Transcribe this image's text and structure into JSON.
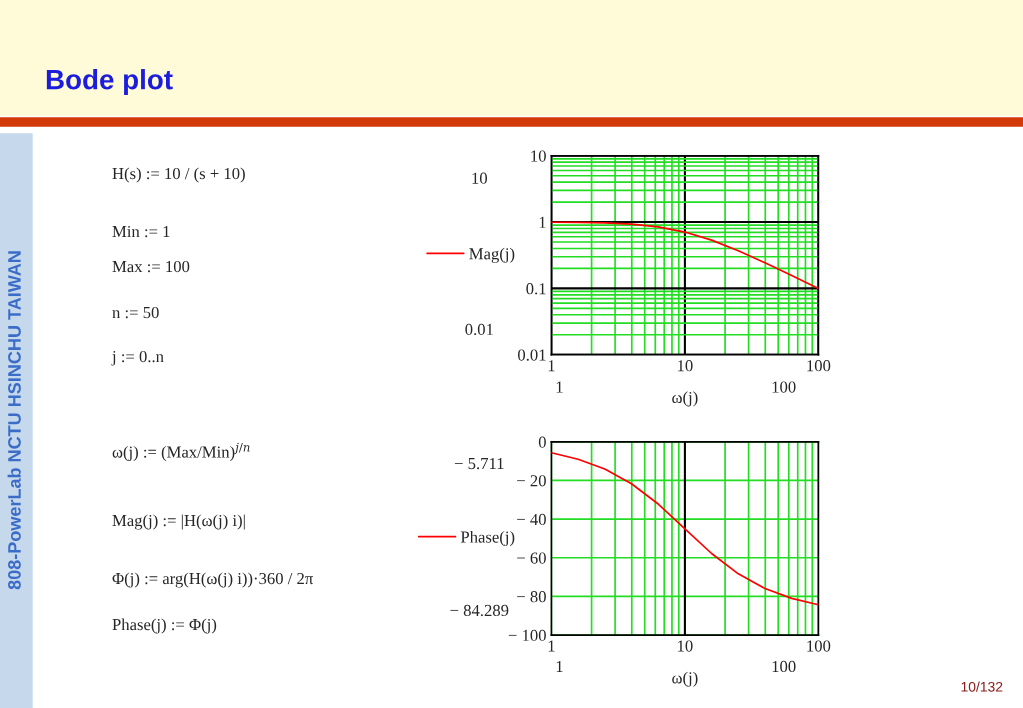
{
  "chart_data": [
    {
      "type": "other",
      "title": "Bode plot",
      "annotations": [
        "H(s) := 10 / (s + 10)",
        "Min := 1",
        "Max := 100",
        "n := 50",
        "j := 0..n",
        "ω(j) := (Max/Min)$^{j/n}$",
        "Mag(j) := |H(ω(j) i)|",
        "Φ(j) := arg(H(ω(j) i))·360 / 2π",
        "Phase(j) := Φ(j)",
        "808-PowerLab NCTU HSINCHU TAIWAN",
        "10/132"
      ]
    },
    {
      "type": "line",
      "log": "xy",
      "xlabel": "ω(j)",
      "legend": "left",
      "grid": true,
      "xlim": [
        1,
        100
      ],
      "ylim": [
        0.01,
        10
      ],
      "xticks": [
        1,
        {
          "value": 2,
          "label": null
        },
        {
          "value": 3,
          "label": null
        },
        {
          "value": 4,
          "label": null
        },
        {
          "value": 5,
          "label": null
        },
        {
          "value": 6,
          "label": null
        },
        {
          "value": 7,
          "label": null
        },
        {
          "value": 8,
          "label": null
        },
        {
          "value": 9,
          "label": null
        },
        10,
        {
          "value": 20,
          "label": null
        },
        {
          "value": 30,
          "label": null
        },
        {
          "value": 40,
          "label": null
        },
        {
          "value": 50,
          "label": null
        },
        {
          "value": 60,
          "label": null
        },
        {
          "value": 70,
          "label": null
        },
        {
          "value": 80,
          "label": null
        },
        {
          "value": 90,
          "label": null
        },
        100
      ],
      "yticks": [
        0.01,
        {
          "value": 0.02,
          "label": null
        },
        {
          "value": 0.03,
          "label": null
        },
        {
          "value": 0.04,
          "label": null
        },
        {
          "value": 0.05,
          "label": null
        },
        {
          "value": 0.06,
          "label": null
        },
        {
          "value": 0.07,
          "label": null
        },
        {
          "value": 0.08,
          "label": null
        },
        {
          "value": 0.09,
          "label": null
        },
        0.1,
        {
          "value": 0.2,
          "label": null
        },
        {
          "value": 0.3,
          "label": null
        },
        {
          "value": 0.4,
          "label": null
        },
        {
          "value": 0.5,
          "label": null
        },
        {
          "value": 0.6,
          "label": null
        },
        {
          "value": 0.7,
          "label": null
        },
        {
          "value": 0.8,
          "label": null
        },
        {
          "value": 0.9,
          "label": null
        },
        1,
        {
          "value": 2,
          "label": null
        },
        {
          "value": 3,
          "label": null
        },
        {
          "value": 4,
          "label": null
        },
        {
          "value": 5,
          "label": null
        },
        {
          "value": 6,
          "label": null
        },
        {
          "value": 7,
          "label": null
        },
        {
          "value": 8,
          "label": null
        },
        {
          "value": 9,
          "label": null
        },
        10
      ],
      "annotations": [
        "10",
        "0.01",
        "1",
        "100"
      ],
      "x": [
        1,
        1.585,
        2.512,
        3.981,
        6.31,
        10,
        15.85,
        25.12,
        39.81,
        63.1,
        100
      ],
      "series": [
        {
          "name": "Mag(j)",
          "color": "#ff0000",
          "values": [
            0.995,
            0.988,
            0.97,
            0.929,
            0.846,
            0.707,
            0.534,
            0.37,
            0.243,
            0.157,
            0.0995
          ]
        }
      ]
    },
    {
      "type": "line",
      "log": "x",
      "xlabel": "ω(j)",
      "legend": "left",
      "grid": true,
      "xlim": [
        1,
        100
      ],
      "ylim": [
        -100,
        0
      ],
      "xticks": [
        1,
        {
          "value": 2,
          "label": null
        },
        {
          "value": 3,
          "label": null
        },
        {
          "value": 4,
          "label": null
        },
        {
          "value": 5,
          "label": null
        },
        {
          "value": 6,
          "label": null
        },
        {
          "value": 7,
          "label": null
        },
        {
          "value": 8,
          "label": null
        },
        {
          "value": 9,
          "label": null
        },
        10,
        {
          "value": 20,
          "label": null
        },
        {
          "value": 30,
          "label": null
        },
        {
          "value": 40,
          "label": null
        },
        {
          "value": 50,
          "label": null
        },
        {
          "value": 60,
          "label": null
        },
        {
          "value": 70,
          "label": null
        },
        {
          "value": 80,
          "label": null
        },
        {
          "value": 90,
          "label": null
        },
        100
      ],
      "ref_lines": [
        {
          "axis": "x",
          "value": 10,
          "color": "#000000"
        }
      ],
      "yticks": [
        0,
        {
          "value": -20,
          "label": "− 20"
        },
        {
          "value": -40,
          "label": "− 40"
        },
        {
          "value": -60,
          "label": "− 60"
        },
        {
          "value": -80,
          "label": "− 80"
        },
        {
          "value": -100,
          "label": "− 100"
        }
      ],
      "annotations": [
        "− 5.711",
        "− 84.289",
        "1",
        "100"
      ],
      "x": [
        1,
        1.585,
        2.512,
        3.981,
        6.31,
        10,
        15.85,
        25.12,
        39.81,
        63.1,
        100
      ],
      "series": [
        {
          "name": "Phase(j)",
          "color": "#ff0000",
          "values": [
            -5.7,
            -9.0,
            -14.1,
            -21.7,
            -32.2,
            -45,
            -57.8,
            -68.3,
            -75.9,
            -81.0,
            -84.3
          ]
        }
      ]
    }
  ]
}
